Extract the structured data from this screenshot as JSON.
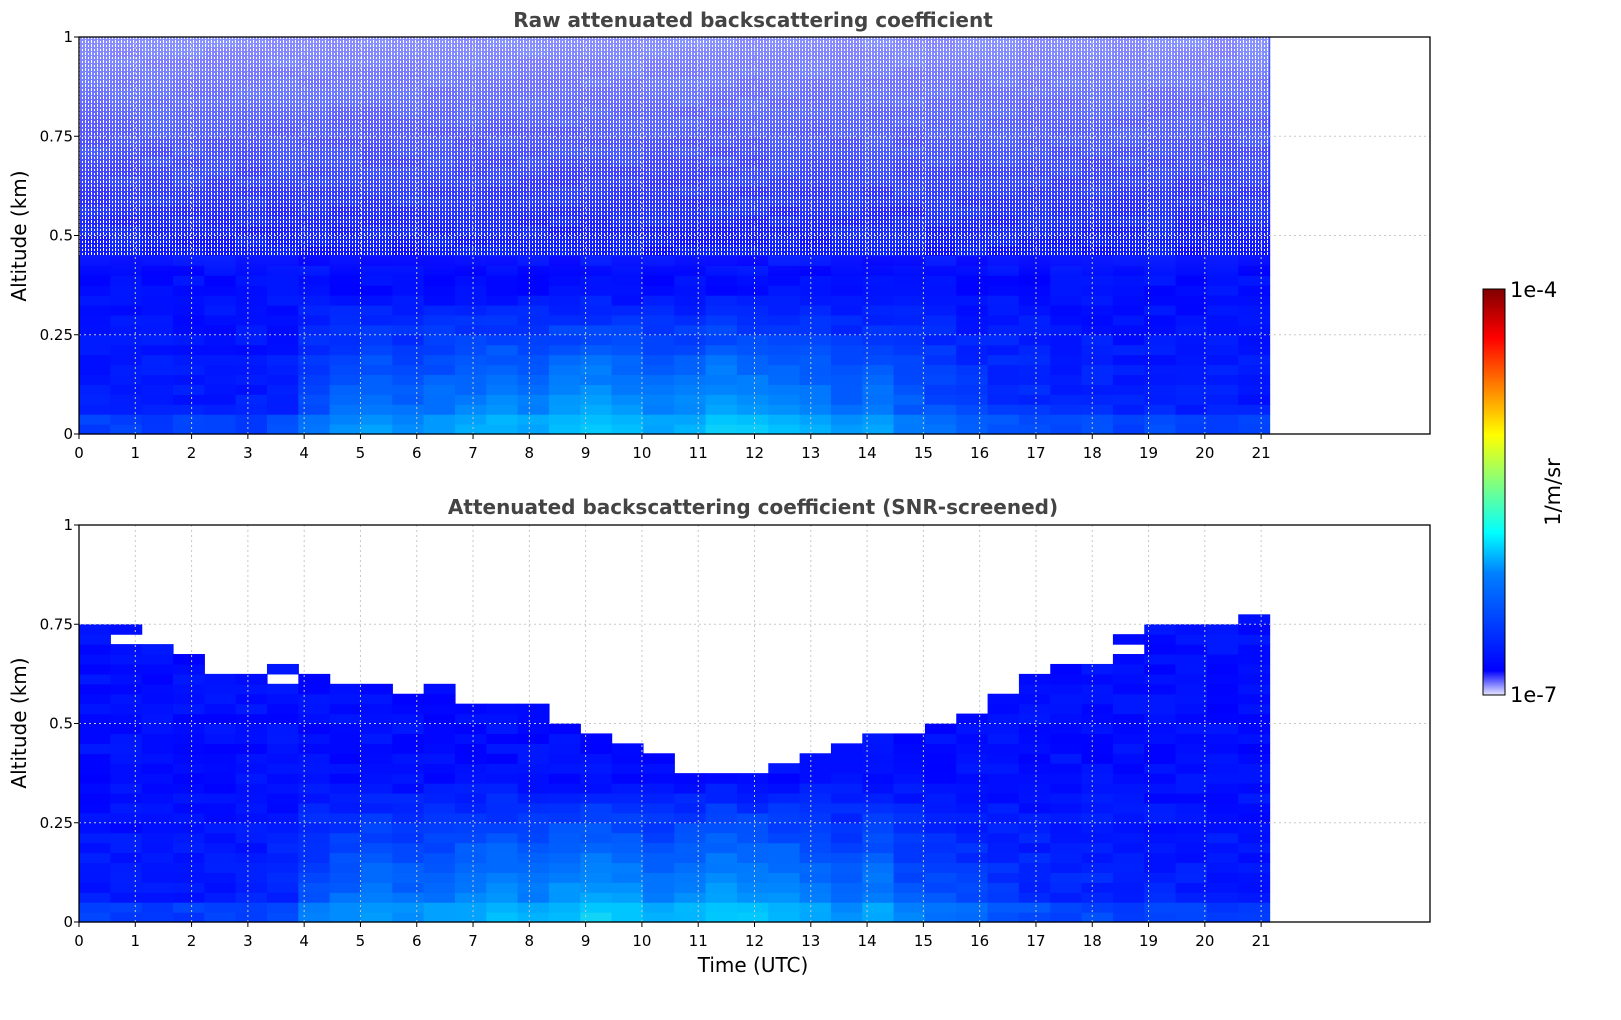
{
  "chart_data": [
    {
      "type": "heatmap",
      "title": "Raw attenuated backscattering coefficient",
      "xlabel": "",
      "ylabel": "Altitude (km)",
      "xlim": [
        0,
        24
      ],
      "ylim": [
        0,
        1
      ],
      "x_ticks": [
        "0",
        "1",
        "2",
        "3",
        "4",
        "5",
        "6",
        "7",
        "8",
        "9",
        "10",
        "11",
        "12",
        "13",
        "14",
        "15",
        "16",
        "17",
        "18",
        "19",
        "20",
        "21"
      ],
      "y_ticks": [
        "0",
        "0.25",
        "0.5",
        "0.75",
        "1"
      ],
      "data_end_x": 21.15,
      "grid": true,
      "colorscale": "jet",
      "clim": [
        1e-07,
        0.0001
      ],
      "column_intensity": [
        0.05,
        0.05,
        0.06,
        0.05,
        0.05,
        0.06,
        0.1,
        0.25,
        0.35,
        0.4,
        0.35,
        0.4,
        0.45,
        0.5,
        0.45,
        0.55,
        0.6,
        0.55,
        0.45,
        0.5,
        0.6,
        0.55,
        0.5,
        0.45,
        0.35,
        0.45,
        0.3,
        0.25,
        0.2,
        0.15,
        0.12,
        0.1,
        0.1,
        0.08,
        0.08,
        0.06,
        0.06,
        0.05
      ]
    },
    {
      "type": "heatmap",
      "title": "Attenuated backscattering coefficient (SNR-screened)",
      "xlabel": "Time (UTC)",
      "ylabel": "Altitude (km)",
      "xlim": [
        0,
        24
      ],
      "ylim": [
        0,
        1
      ],
      "x_ticks": [
        "0",
        "1",
        "2",
        "3",
        "4",
        "5",
        "6",
        "7",
        "8",
        "9",
        "10",
        "11",
        "12",
        "13",
        "14",
        "15",
        "16",
        "17",
        "18",
        "19",
        "20",
        "21"
      ],
      "y_ticks": [
        "0",
        "0.25",
        "0.5",
        "0.75",
        "1"
      ],
      "data_end_x": 21.15,
      "grid": true,
      "colorscale": "jet",
      "clim": [
        1e-07,
        0.0001
      ],
      "column_intensity": [
        0.05,
        0.05,
        0.06,
        0.05,
        0.05,
        0.06,
        0.1,
        0.25,
        0.35,
        0.4,
        0.35,
        0.4,
        0.45,
        0.5,
        0.45,
        0.55,
        0.6,
        0.55,
        0.45,
        0.5,
        0.6,
        0.55,
        0.5,
        0.45,
        0.35,
        0.45,
        0.3,
        0.25,
        0.2,
        0.15,
        0.12,
        0.1,
        0.1,
        0.08,
        0.08,
        0.06,
        0.06,
        0.05
      ],
      "signal_top_km": [
        [
          0,
          0.76
        ],
        [
          1,
          0.7
        ],
        [
          2,
          0.66
        ],
        [
          3,
          0.62
        ],
        [
          4,
          0.6
        ],
        [
          5,
          0.58
        ],
        [
          6,
          0.57
        ],
        [
          7,
          0.56
        ],
        [
          8,
          0.53
        ],
        [
          9,
          0.49
        ],
        [
          10,
          0.43
        ],
        [
          10.5,
          0.38
        ],
        [
          11,
          0.37
        ],
        [
          12,
          0.37
        ],
        [
          13,
          0.4
        ],
        [
          14,
          0.44
        ],
        [
          15,
          0.47
        ],
        [
          16,
          0.52
        ],
        [
          17,
          0.6
        ],
        [
          18,
          0.66
        ],
        [
          19,
          0.71
        ],
        [
          20,
          0.74
        ],
        [
          21.15,
          0.76
        ]
      ]
    }
  ],
  "colorbar": {
    "label": "1/m/sr",
    "max_label": "1e-4",
    "min_label": "1e-7",
    "colors": [
      "#e6e6ff",
      "#0000ff",
      "#0080ff",
      "#00ffff",
      "#80ff80",
      "#ffff00",
      "#ff8000",
      "#ff0000",
      "#800000"
    ]
  }
}
